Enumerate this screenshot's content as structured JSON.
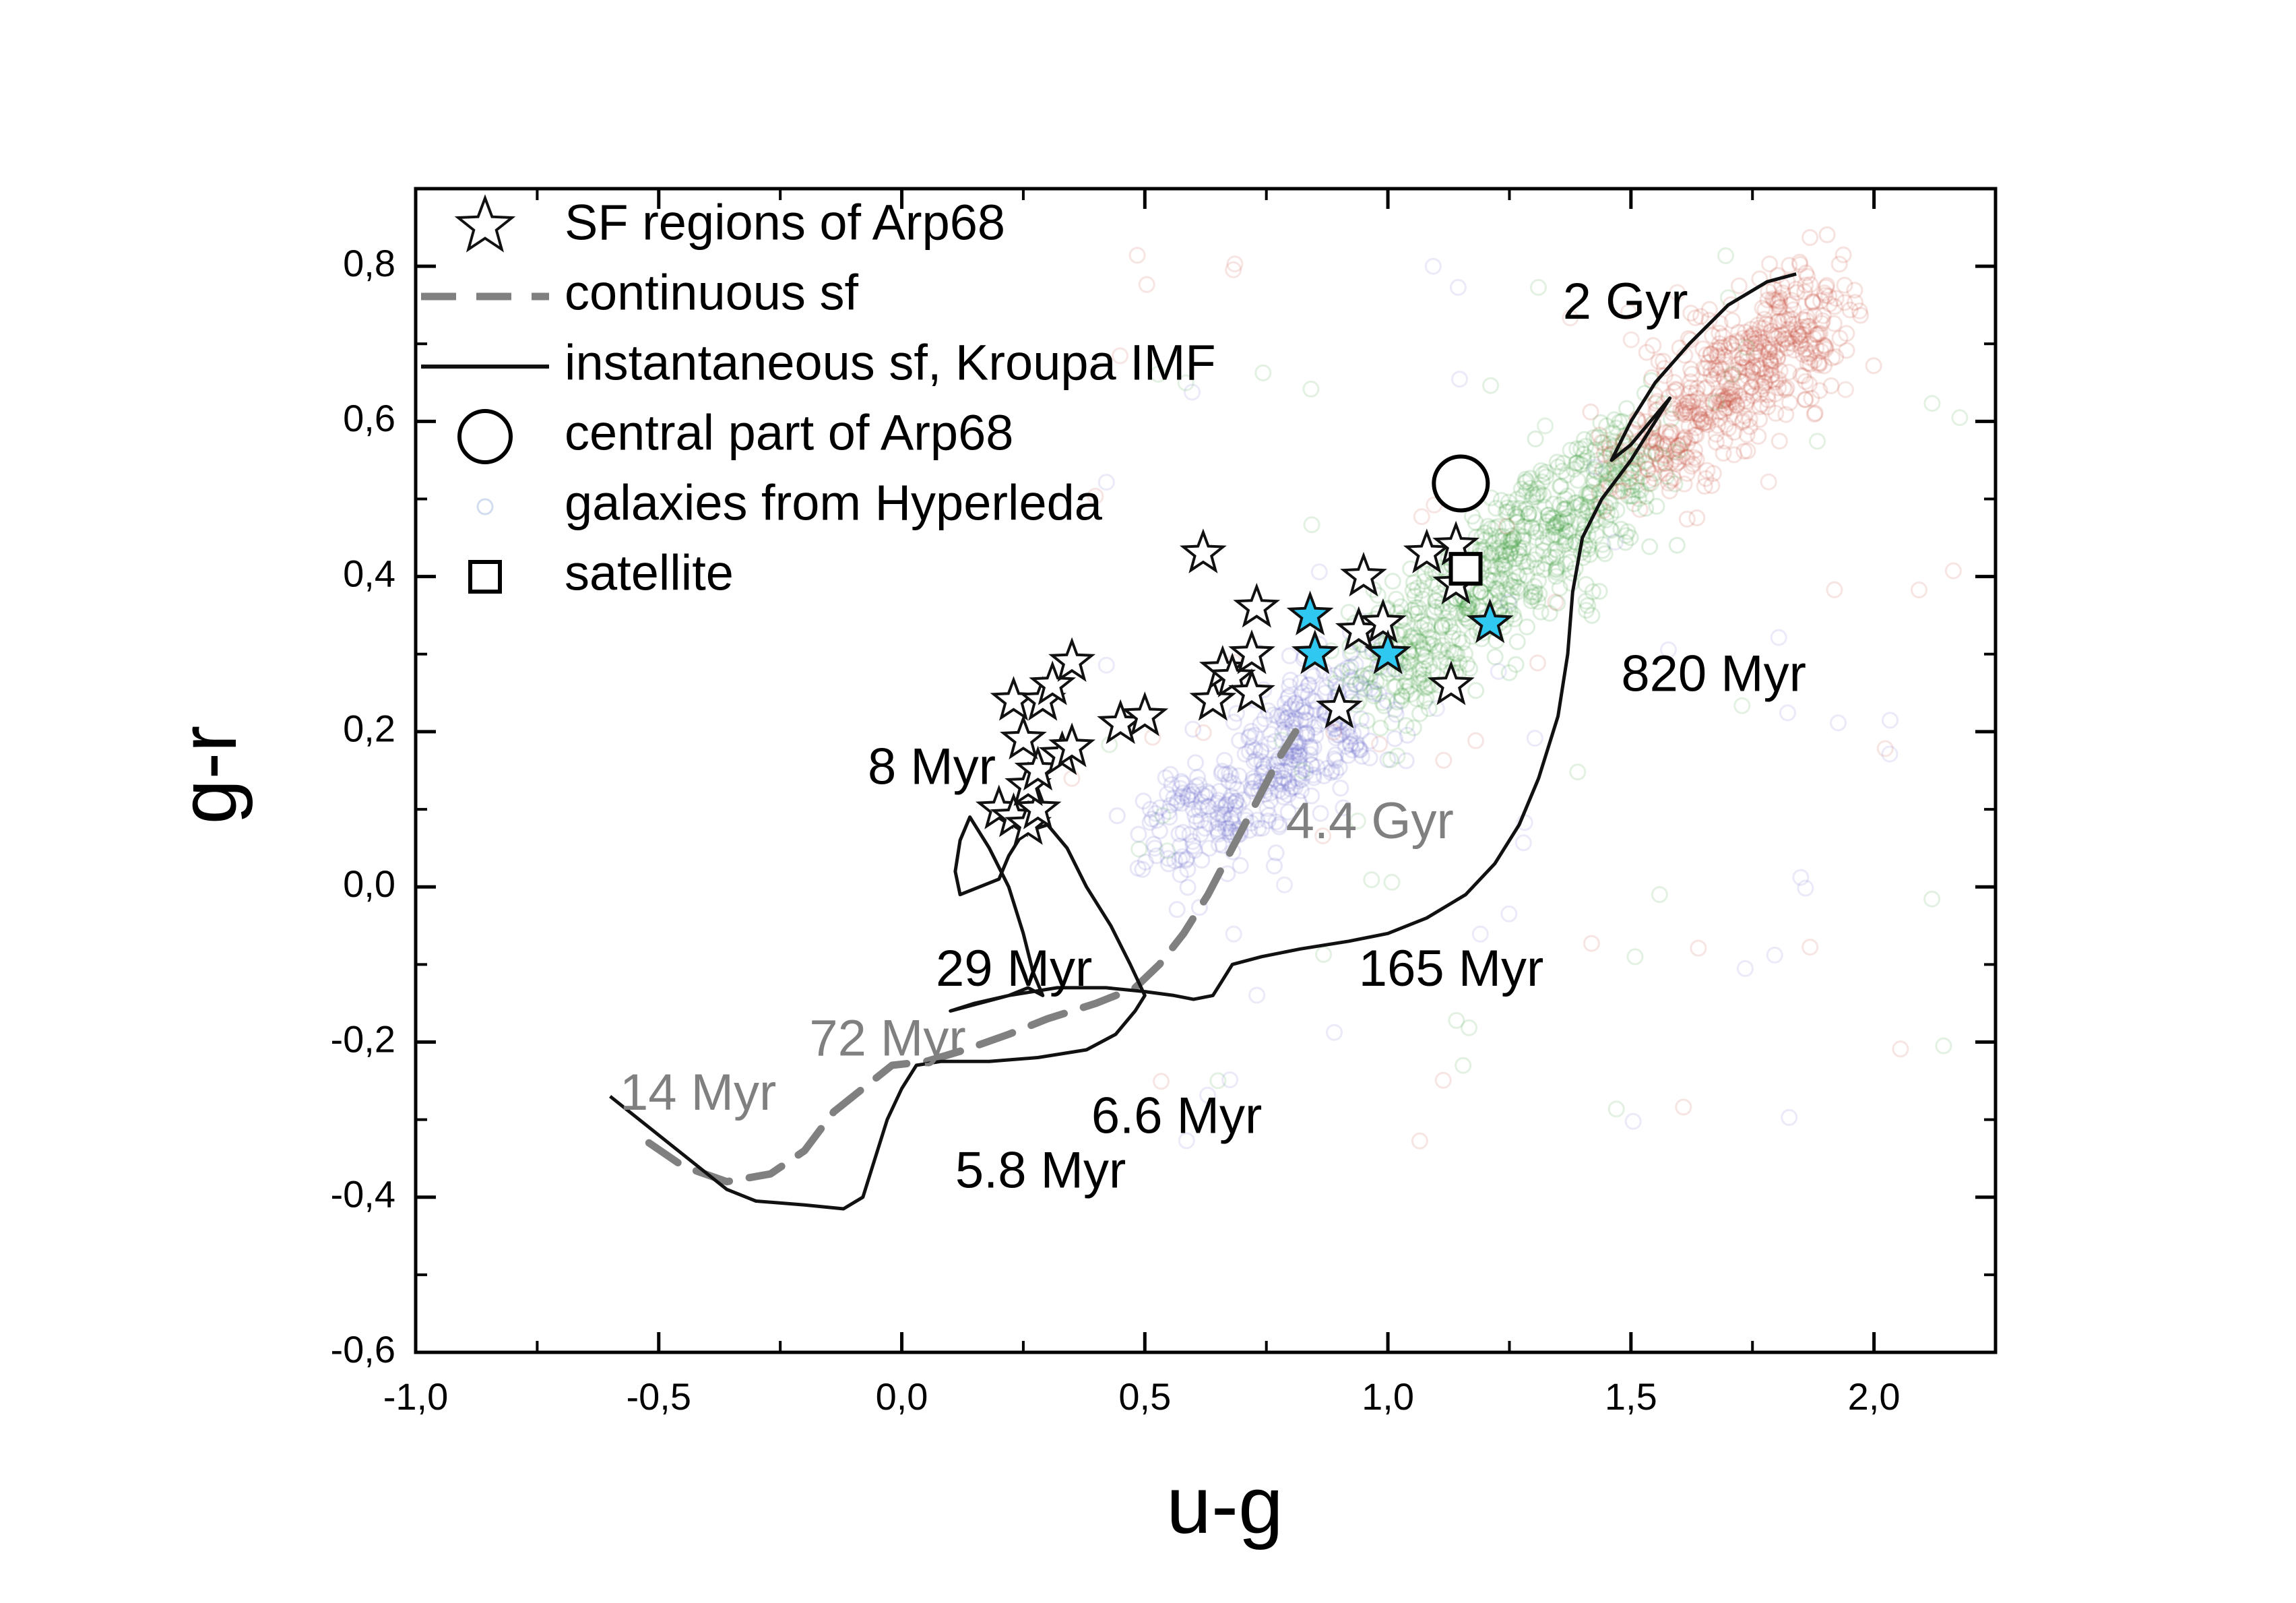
{
  "chart_data": {
    "type": "scatter",
    "xlabel": "u-g",
    "ylabel": "g-r",
    "xlim": [
      -1.0,
      2.25
    ],
    "ylim": [
      -0.6,
      0.9
    ],
    "x_ticks": [
      {
        "v": -1.0,
        "label": "-1,0"
      },
      {
        "v": -0.5,
        "label": "-0,5"
      },
      {
        "v": 0.0,
        "label": "0,0"
      },
      {
        "v": 0.5,
        "label": "0,5"
      },
      {
        "v": 1.0,
        "label": "1,0"
      },
      {
        "v": 1.5,
        "label": "1,5"
      },
      {
        "v": 2.0,
        "label": "2,0"
      }
    ],
    "y_ticks": [
      {
        "v": -0.6,
        "label": "-0,6"
      },
      {
        "v": -0.4,
        "label": "-0,4"
      },
      {
        "v": -0.2,
        "label": "-0,2"
      },
      {
        "v": 0.0,
        "label": "0,0"
      },
      {
        "v": 0.2,
        "label": "0,2"
      },
      {
        "v": 0.4,
        "label": "0,4"
      },
      {
        "v": 0.6,
        "label": "0,6"
      },
      {
        "v": 0.8,
        "label": "0,8"
      }
    ],
    "legend": {
      "position": "top-left",
      "entries": [
        {
          "symbol": "star",
          "label": "SF regions of Arp68"
        },
        {
          "symbol": "dash",
          "label": "continuous sf"
        },
        {
          "symbol": "line",
          "label": "instantaneous sf, Kroupa IMF"
        },
        {
          "symbol": "circle",
          "label": "central part of Arp68"
        },
        {
          "symbol": "small-circle",
          "label": "galaxies from Hyperleda"
        },
        {
          "symbol": "square",
          "label": "satellite"
        }
      ]
    },
    "series": [
      {
        "name": "SF regions of Arp68",
        "marker": "star",
        "color": "#ffffff",
        "points": [
          [
            0.2,
            0.1
          ],
          [
            0.23,
            0.09
          ],
          [
            0.26,
            0.08
          ],
          [
            0.28,
            0.1
          ],
          [
            0.26,
            0.13
          ],
          [
            0.28,
            0.15
          ],
          [
            0.25,
            0.19
          ],
          [
            0.33,
            0.17
          ],
          [
            0.35,
            0.18
          ],
          [
            0.23,
            0.24
          ],
          [
            0.29,
            0.24
          ],
          [
            0.31,
            0.26
          ],
          [
            0.35,
            0.29
          ],
          [
            0.45,
            0.21
          ],
          [
            0.5,
            0.22
          ],
          [
            0.62,
            0.43
          ],
          [
            0.64,
            0.24
          ],
          [
            0.66,
            0.28
          ],
          [
            0.68,
            0.27
          ],
          [
            0.72,
            0.25
          ],
          [
            0.72,
            0.3
          ],
          [
            0.73,
            0.36
          ],
          [
            0.9,
            0.23
          ],
          [
            0.94,
            0.33
          ],
          [
            0.95,
            0.4
          ],
          [
            0.99,
            0.34
          ],
          [
            1.08,
            0.43
          ],
          [
            1.13,
            0.26
          ],
          [
            1.14,
            0.44
          ],
          [
            1.14,
            0.39
          ]
        ]
      },
      {
        "name": "SF regions of Arp68 (blue)",
        "marker": "star",
        "color": "#2ec8f0",
        "points": [
          [
            0.84,
            0.35
          ],
          [
            0.85,
            0.3
          ],
          [
            1.0,
            0.3
          ],
          [
            1.21,
            0.34
          ]
        ]
      },
      {
        "name": "central part of Arp68",
        "marker": "circle",
        "points": [
          [
            1.15,
            0.52
          ]
        ]
      },
      {
        "name": "satellite",
        "marker": "square",
        "points": [
          [
            1.16,
            0.41
          ]
        ]
      },
      {
        "name": "galaxies from Hyperleda",
        "marker": "small-circle",
        "distribution": "dense band of several thousand points from about (0.55, 0.05) to (1.9, 0.78); blue at the low end, green in the middle, red at the upper right"
      },
      {
        "name": "continuous sf",
        "line_style": "dashed",
        "color": "#808080",
        "points": [
          [
            -0.52,
            -0.33
          ],
          [
            -0.45,
            -0.36
          ],
          [
            -0.36,
            -0.38
          ],
          [
            -0.27,
            -0.37
          ],
          [
            -0.2,
            -0.34
          ],
          [
            -0.14,
            -0.29
          ],
          [
            -0.08,
            -0.26
          ],
          [
            -0.02,
            -0.23
          ],
          [
            0.05,
            -0.225
          ],
          [
            0.13,
            -0.21
          ],
          [
            0.22,
            -0.19
          ],
          [
            0.3,
            -0.17
          ],
          [
            0.4,
            -0.15
          ],
          [
            0.48,
            -0.13
          ],
          [
            0.53,
            -0.1
          ],
          [
            0.58,
            -0.06
          ],
          [
            0.63,
            -0.01
          ],
          [
            0.68,
            0.05
          ],
          [
            0.73,
            0.11
          ],
          [
            0.78,
            0.17
          ],
          [
            0.81,
            0.2
          ]
        ]
      },
      {
        "name": "instantaneous sf, Kroupa IMF",
        "line_style": "solid",
        "color": "#111111",
        "points": [
          [
            -0.6,
            -0.27
          ],
          [
            -0.52,
            -0.31
          ],
          [
            -0.44,
            -0.35
          ],
          [
            -0.36,
            -0.39
          ],
          [
            -0.3,
            -0.405
          ],
          [
            -0.2,
            -0.41
          ],
          [
            -0.12,
            -0.415
          ],
          [
            -0.08,
            -0.4
          ],
          [
            -0.06,
            -0.36
          ],
          [
            -0.03,
            -0.3
          ],
          [
            0.0,
            -0.26
          ],
          [
            0.03,
            -0.23
          ],
          [
            0.08,
            -0.225
          ],
          [
            0.18,
            -0.225
          ],
          [
            0.28,
            -0.22
          ],
          [
            0.38,
            -0.21
          ],
          [
            0.44,
            -0.19
          ],
          [
            0.48,
            -0.16
          ],
          [
            0.5,
            -0.14
          ],
          [
            0.47,
            -0.1
          ],
          [
            0.43,
            -0.05
          ],
          [
            0.38,
            0.0
          ],
          [
            0.34,
            0.05
          ],
          [
            0.3,
            0.08
          ],
          [
            0.25,
            0.07
          ],
          [
            0.22,
            0.04
          ],
          [
            0.2,
            0.01
          ],
          [
            0.16,
            0.0
          ],
          [
            0.12,
            -0.01
          ],
          [
            0.11,
            0.02
          ],
          [
            0.12,
            0.06
          ],
          [
            0.14,
            0.09
          ],
          [
            0.18,
            0.05
          ],
          [
            0.22,
            0.0
          ],
          [
            0.25,
            -0.06
          ],
          [
            0.27,
            -0.11
          ],
          [
            0.29,
            -0.14
          ],
          [
            0.26,
            -0.13
          ],
          [
            0.22,
            -0.14
          ],
          [
            0.16,
            -0.15
          ],
          [
            0.1,
            -0.16
          ],
          [
            0.15,
            -0.15
          ],
          [
            0.22,
            -0.14
          ],
          [
            0.32,
            -0.13
          ],
          [
            0.42,
            -0.13
          ],
          [
            0.5,
            -0.135
          ],
          [
            0.56,
            -0.14
          ],
          [
            0.6,
            -0.145
          ],
          [
            0.64,
            -0.14
          ],
          [
            0.66,
            -0.12
          ],
          [
            0.68,
            -0.1
          ],
          [
            0.74,
            -0.09
          ],
          [
            0.82,
            -0.08
          ],
          [
            0.92,
            -0.07
          ],
          [
            1.0,
            -0.06
          ],
          [
            1.08,
            -0.04
          ],
          [
            1.16,
            -0.01
          ],
          [
            1.22,
            0.03
          ],
          [
            1.27,
            0.08
          ],
          [
            1.31,
            0.14
          ],
          [
            1.35,
            0.22
          ],
          [
            1.37,
            0.3
          ],
          [
            1.38,
            0.38
          ],
          [
            1.4,
            0.45
          ],
          [
            1.44,
            0.5
          ],
          [
            1.5,
            0.55
          ],
          [
            1.55,
            0.6
          ],
          [
            1.58,
            0.63
          ],
          [
            1.5,
            0.57
          ],
          [
            1.46,
            0.55
          ],
          [
            1.5,
            0.6
          ],
          [
            1.55,
            0.65
          ],
          [
            1.62,
            0.7
          ],
          [
            1.7,
            0.75
          ],
          [
            1.78,
            0.78
          ],
          [
            1.84,
            0.79
          ]
        ]
      }
    ],
    "annotations": [
      {
        "text": "2 Gyr",
        "x": 1.36,
        "y": 0.75,
        "color": "#000000"
      },
      {
        "text": "820 Myr",
        "x": 1.48,
        "y": 0.27,
        "color": "#000000"
      },
      {
        "text": "8 Myr",
        "x": -0.07,
        "y": 0.15,
        "color": "#000000"
      },
      {
        "text": "4.4 Gyr",
        "x": 0.79,
        "y": 0.08,
        "color": "#808080"
      },
      {
        "text": "29 Myr",
        "x": 0.07,
        "y": -0.11,
        "color": "#000000"
      },
      {
        "text": "165 Myr",
        "x": 0.94,
        "y": -0.11,
        "color": "#000000"
      },
      {
        "text": "72 Myr",
        "x": -0.19,
        "y": -0.2,
        "color": "#808080"
      },
      {
        "text": "14 Myr",
        "x": -0.58,
        "y": -0.27,
        "color": "#808080"
      },
      {
        "text": "6.6 Myr",
        "x": 0.39,
        "y": -0.3,
        "color": "#000000"
      },
      {
        "text": "5.8 Myr",
        "x": 0.11,
        "y": -0.37,
        "color": "#000000"
      }
    ]
  }
}
